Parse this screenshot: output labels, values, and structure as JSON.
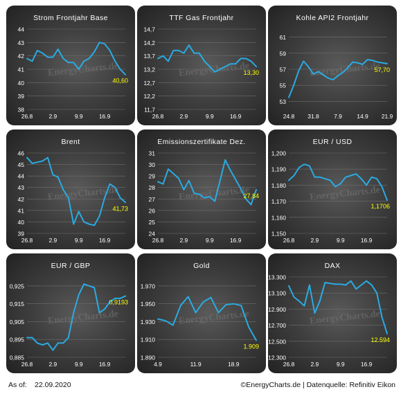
{
  "footer": {
    "as_of_label": "As of:",
    "as_of_date": "22.09.2020",
    "credit": "©EnergyCharts.de | Datenquelle: Refinitiv Eikon"
  },
  "watermark": "EnergyCharts.de",
  "colors": {
    "line": "#29abe2",
    "last_value": "#ffff00",
    "text": "#ffffff",
    "grid": "#6e6e6e"
  },
  "chart_data": [
    {
      "type": "line",
      "title": "Strom Frontjahr Base",
      "y_ticks": [
        "44",
        "43",
        "42",
        "41",
        "40",
        "39",
        "38"
      ],
      "ylim": [
        38,
        44
      ],
      "x_tick_labels": [
        "26.8",
        "2.9",
        "9.9",
        "16.9"
      ],
      "x_tick_pos": [
        0,
        5,
        10,
        15
      ],
      "x_count": 20,
      "last_value_label": "40,60",
      "values": [
        41.8,
        41.6,
        42.4,
        42.2,
        41.9,
        41.9,
        42.5,
        41.8,
        41.5,
        41.5,
        41.0,
        41.6,
        41.8,
        42.3,
        43.0,
        42.9,
        42.4,
        41.6,
        41.0,
        40.6
      ]
    },
    {
      "type": "line",
      "title": "TTF Gas Frontjahr",
      "y_ticks": [
        "14,7",
        "14,2",
        "13,7",
        "13,2",
        "12,7",
        "12,2",
        "11,7"
      ],
      "ylim": [
        11.7,
        14.7
      ],
      "x_tick_labels": [
        "26.8",
        "2.9",
        "9.9",
        "16.9"
      ],
      "x_tick_pos": [
        0,
        5,
        10,
        15
      ],
      "x_count": 20,
      "last_value_label": "13,30",
      "values": [
        13.6,
        13.7,
        13.5,
        13.9,
        13.9,
        13.8,
        14.1,
        13.8,
        13.8,
        13.5,
        13.3,
        13.1,
        13.2,
        13.3,
        13.4,
        13.4,
        13.6,
        13.6,
        13.5,
        13.3
      ]
    },
    {
      "type": "line",
      "title": "Kohle API2 Frontjahr",
      "y_ticks": [
        "61",
        "59",
        "57",
        "55",
        "53"
      ],
      "ylim": [
        52,
        62
      ],
      "x_tick_labels": [
        "24.8",
        "31.8",
        "7.9",
        "14.9",
        "21.9"
      ],
      "x_tick_pos": [
        0,
        5,
        10,
        15,
        20
      ],
      "x_count": 21,
      "last_value_label": "57,70",
      "values": [
        53.5,
        55.0,
        56.8,
        58.0,
        57.3,
        56.4,
        56.7,
        56.3,
        55.9,
        55.7,
        56.2,
        56.6,
        57.2,
        57.9,
        57.8,
        57.6,
        58.2,
        58.1,
        57.9,
        57.8,
        57.7
      ]
    },
    {
      "type": "line",
      "title": "Brent",
      "y_ticks": [
        "46",
        "45",
        "44",
        "43",
        "42",
        "41",
        "40",
        "39"
      ],
      "ylim": [
        39,
        46
      ],
      "x_tick_labels": [
        "26.8",
        "2.9",
        "9.9",
        "16.9"
      ],
      "x_tick_pos": [
        0,
        5,
        10,
        15
      ],
      "x_count": 20,
      "last_value_label": "41,73",
      "values": [
        45.6,
        45.1,
        45.2,
        45.3,
        45.6,
        44.1,
        43.9,
        42.8,
        42.1,
        39.8,
        40.9,
        40.0,
        39.8,
        39.7,
        40.5,
        42.1,
        43.3,
        43.0,
        42.1,
        41.7
      ]
    },
    {
      "type": "line",
      "title": "Emissionszertifikate Dez.",
      "y_ticks": [
        "31",
        "30",
        "29",
        "28",
        "27",
        "26",
        "25",
        "24"
      ],
      "ylim": [
        24,
        31
      ],
      "x_tick_labels": [
        "26.8",
        "2.9",
        "9.9",
        "16.9"
      ],
      "x_tick_pos": [
        0,
        5,
        10,
        15
      ],
      "x_count": 20,
      "last_value_label": "27,84",
      "values": [
        28.5,
        28.3,
        29.6,
        29.2,
        28.8,
        27.8,
        28.6,
        27.5,
        27.4,
        27.1,
        27.2,
        26.8,
        28.6,
        30.4,
        29.5,
        28.7,
        27.9,
        27.0,
        26.5,
        27.8
      ]
    },
    {
      "type": "line",
      "title": "EUR / USD",
      "y_ticks": [
        "1,200",
        "1,190",
        "1,180",
        "1,170",
        "1,160",
        "1,150"
      ],
      "ylim": [
        1.15,
        1.2
      ],
      "x_tick_labels": [
        "26.8",
        "2.9",
        "9.9",
        "16.9"
      ],
      "x_tick_pos": [
        0,
        5,
        10,
        15
      ],
      "x_count": 20,
      "last_value_label": "1,1706",
      "values": [
        1.183,
        1.186,
        1.191,
        1.193,
        1.192,
        1.185,
        1.185,
        1.184,
        1.183,
        1.179,
        1.181,
        1.185,
        1.186,
        1.187,
        1.184,
        1.18,
        1.185,
        1.184,
        1.179,
        1.1706
      ]
    },
    {
      "type": "line",
      "title": "EUR / GBP",
      "y_ticks": [
        "0,925",
        "0,915",
        "0,905",
        "0,895",
        "0,885"
      ],
      "ylim": [
        0.885,
        0.93
      ],
      "x_tick_labels": [
        "26.8",
        "2.9",
        "9.9",
        "16.9"
      ],
      "x_tick_pos": [
        0,
        5,
        10,
        15
      ],
      "x_count": 20,
      "last_value_label": "0,9193",
      "values": [
        0.896,
        0.896,
        0.893,
        0.892,
        0.893,
        0.889,
        0.893,
        0.893,
        0.896,
        0.91,
        0.92,
        0.926,
        0.925,
        0.924,
        0.91,
        0.912,
        0.916,
        0.918,
        0.918,
        0.9193
      ]
    },
    {
      "type": "line",
      "title": "Gold",
      "y_ticks": [
        "1.970",
        "1.950",
        "1.930",
        "1.910",
        "1.890"
      ],
      "ylim": [
        1890,
        1980
      ],
      "x_tick_labels": [
        "4.9",
        "11.9",
        "18.9"
      ],
      "x_tick_pos": [
        0,
        5,
        10
      ],
      "x_count": 14,
      "last_value_label": "1.909",
      "values": [
        1933,
        1931,
        1926,
        1948,
        1958,
        1940,
        1952,
        1957,
        1940,
        1949,
        1950,
        1948,
        1924,
        1909
      ]
    },
    {
      "type": "line",
      "title": "DAX",
      "y_ticks": [
        "13.300",
        "13.100",
        "12.900",
        "12.700",
        "12.500",
        "12.300"
      ],
      "ylim": [
        12300,
        13300
      ],
      "x_tick_labels": [
        "26.8",
        "2.9",
        "9.9",
        "16.9"
      ],
      "x_tick_pos": [
        0,
        5,
        10,
        15
      ],
      "x_count": 20,
      "last_value_label": "12.594",
      "values": [
        13190,
        13050,
        13000,
        12940,
        13200,
        12850,
        13000,
        13230,
        13220,
        13210,
        13210,
        13200,
        13250,
        13150,
        13200,
        13250,
        13200,
        13100,
        12800,
        12594
      ]
    }
  ]
}
